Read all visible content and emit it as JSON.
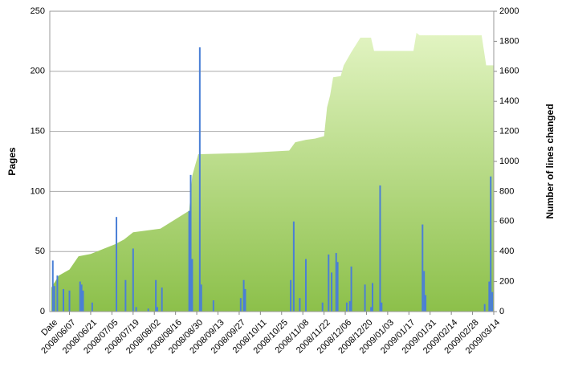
{
  "chart_data": {
    "type": "combo",
    "x_label": "Date",
    "y_label": "Pages",
    "y2_label": "Number of lines changed",
    "xlim": [
      "2008/05/25",
      "2009/03/14"
    ],
    "xticks": [
      "2008/06/07",
      "2008/06/21",
      "2008/07/05",
      "2008/07/19",
      "2008/08/02",
      "2008/08/16",
      "2008/08/30",
      "2008/09/13",
      "2008/09/27",
      "2008/10/11",
      "2008/10/25",
      "2008/11/08",
      "2008/11/22",
      "2008/12/06",
      "2008/12/20",
      "2009/01/03",
      "2009/01/17",
      "2009/01/31",
      "2009/02/14",
      "2009/02/28",
      "2009/03/14"
    ],
    "ylim": [
      0,
      250
    ],
    "yticks": [
      0,
      50,
      100,
      150,
      200,
      250
    ],
    "y2lim": [
      0,
      2000
    ],
    "y2ticks": [
      0,
      200,
      400,
      600,
      800,
      1000,
      1200,
      1400,
      1600,
      1800,
      2000
    ],
    "grid": true,
    "series": [
      {
        "type": "area",
        "axis": "y",
        "color": "#8cc04a",
        "x": [
          "2008/05/26",
          "2008/05/31",
          "2008/06/07",
          "2008/06/13",
          "2008/06/21",
          "2008/07/07",
          "2008/07/13",
          "2008/07/19",
          "2008/08/06",
          "2008/08/25",
          "2008/08/27",
          "2008/08/31",
          "2008/10/01",
          "2008/10/30",
          "2008/11/03",
          "2008/11/10",
          "2008/11/16",
          "2008/11/22",
          "2008/11/24",
          "2008/11/26",
          "2008/11/28",
          "2008/12/03",
          "2008/12/05",
          "2008/12/10",
          "2008/12/13",
          "2008/12/16",
          "2008/12/23",
          "2008/12/25",
          "2009/01/20",
          "2009/01/22",
          "2009/01/24",
          "2009/03/06",
          "2009/03/09",
          "2009/03/14"
        ],
        "values": [
          20,
          30,
          35,
          46,
          48,
          56,
          60,
          66,
          69,
          84,
          113,
          131,
          132,
          134,
          141,
          143,
          144,
          146,
          170,
          180,
          195,
          196,
          205,
          216,
          222,
          228,
          228,
          217,
          217,
          232,
          230,
          230,
          205,
          205
        ]
      },
      {
        "type": "bar",
        "axis": "y2",
        "color": "#4a7fd6",
        "x": [
          "2008/05/27",
          "2008/05/28",
          "2008/05/30",
          "2008/06/03",
          "2008/06/07",
          "2008/06/14",
          "2008/06/15",
          "2008/06/16",
          "2008/06/22",
          "2008/07/08",
          "2008/07/14",
          "2008/07/19",
          "2008/07/21",
          "2008/07/29",
          "2008/08/03",
          "2008/08/04",
          "2008/08/07",
          "2008/08/25",
          "2008/08/26",
          "2008/08/27",
          "2008/09/01",
          "2008/09/02",
          "2008/09/10",
          "2008/09/28",
          "2008/09/30",
          "2008/10/01",
          "2008/10/31",
          "2008/11/02",
          "2008/11/06",
          "2008/11/10",
          "2008/11/21",
          "2008/11/25",
          "2008/11/27",
          "2008/11/30",
          "2008/12/01",
          "2008/12/07",
          "2008/12/09",
          "2008/12/10",
          "2008/12/19",
          "2008/12/23",
          "2008/12/24",
          "2008/12/29",
          "2008/12/30",
          "2009/01/26",
          "2009/01/27",
          "2009/01/28",
          "2009/03/08",
          "2009/03/11",
          "2009/03/12",
          "2009/03/13"
        ],
        "values": [
          340,
          170,
          240,
          150,
          140,
          200,
          180,
          140,
          60,
          630,
          210,
          420,
          30,
          20,
          210,
          30,
          160,
          670,
          910,
          350,
          1760,
          180,
          75,
          90,
          210,
          150,
          210,
          600,
          90,
          350,
          60,
          380,
          260,
          390,
          330,
          60,
          70,
          300,
          180,
          30,
          190,
          840,
          60,
          580,
          270,
          110,
          50,
          200,
          900,
          130
        ]
      }
    ]
  }
}
